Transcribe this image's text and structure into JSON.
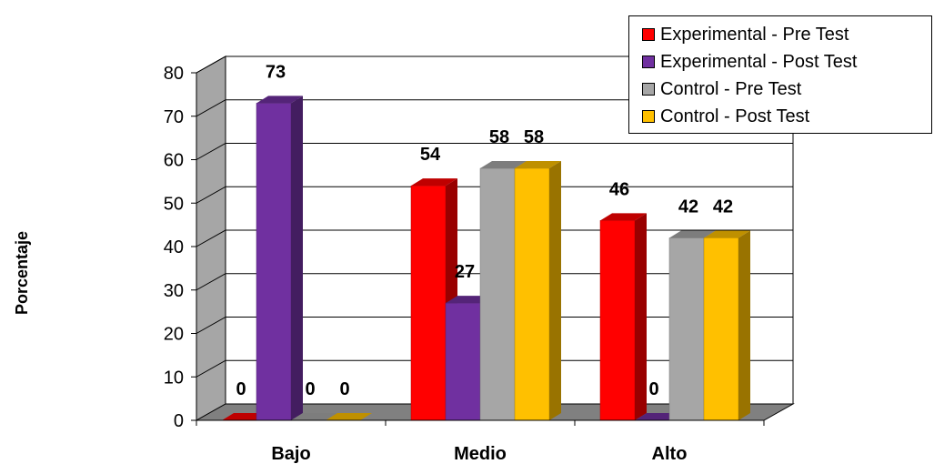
{
  "chart_data": {
    "type": "bar",
    "style": "3d clustered column",
    "ylabel": "Porcentaje",
    "xlabel": "",
    "ylim": [
      0,
      80
    ],
    "ytick_step": 10,
    "yticks": [
      "0",
      "10",
      "20",
      "30",
      "40",
      "50",
      "60",
      "70",
      "80"
    ],
    "grid": true,
    "legend_position": "top-right",
    "categories": [
      "Bajo",
      "Medio",
      "Alto"
    ],
    "series": [
      {
        "name": "Experimental - Pre Test",
        "color": "#ff0000",
        "values": [
          0,
          54,
          46
        ]
      },
      {
        "name": "Experimental - Post Test",
        "color": "#7030a0",
        "values": [
          73,
          27,
          0
        ]
      },
      {
        "name": "Control - Pre Test",
        "color": "#a6a6a6",
        "values": [
          0,
          58,
          42
        ]
      },
      {
        "name": "Control - Post Test",
        "color": "#ffc000",
        "values": [
          0,
          58,
          42
        ]
      }
    ]
  }
}
